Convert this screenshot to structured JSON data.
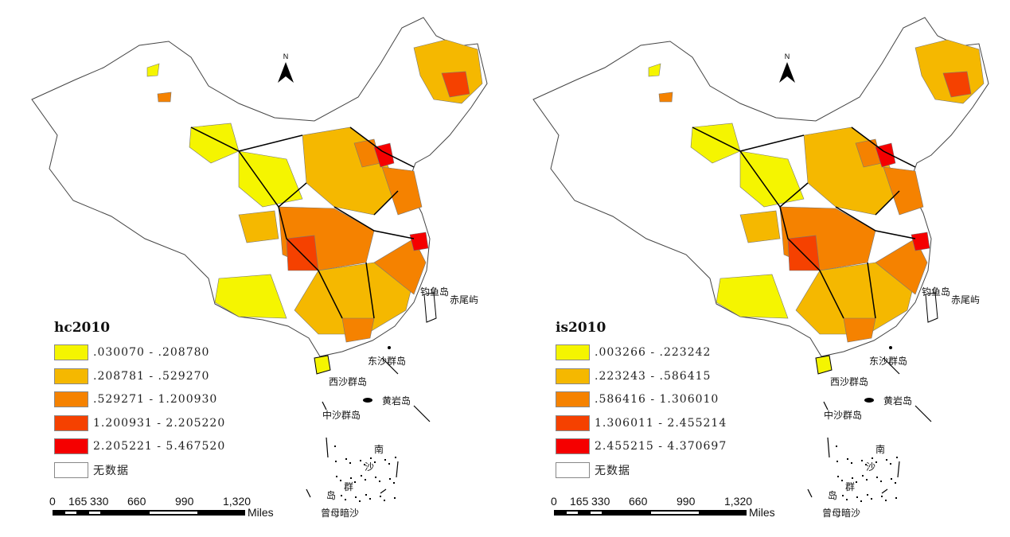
{
  "panels": [
    {
      "title": "hc2010",
      "legend": [
        {
          "label": ".030070 - .208780",
          "color": "#f5f500"
        },
        {
          "label": ".208781 - .529270",
          "color": "#f5b800"
        },
        {
          "label": ".529271 - 1.200930",
          "color": "#f58200"
        },
        {
          "label": "1.200931 - 2.205220",
          "color": "#f54100"
        },
        {
          "label": "2.205221 - 5.467520",
          "color": "#f50000"
        },
        {
          "label": "无数据",
          "color": "#ffffff"
        }
      ]
    },
    {
      "title": "is2010",
      "legend": [
        {
          "label": ".003266 - .223242",
          "color": "#f5f500"
        },
        {
          "label": ".223243 - .586415",
          "color": "#f5b800"
        },
        {
          "label": ".586416 - 1.306010",
          "color": "#f58200"
        },
        {
          "label": "1.306011 - 2.455214",
          "color": "#f54100"
        },
        {
          "label": "2.455215 - 4.370697",
          "color": "#f50000"
        },
        {
          "label": "无数据",
          "color": "#ffffff"
        }
      ]
    }
  ],
  "scale": {
    "ticks": [
      "0",
      "165",
      "330",
      "660",
      "990",
      "1,320"
    ],
    "unit": "Miles"
  },
  "north": "N",
  "islands": {
    "diaoyu": "钓鱼岛",
    "chiwei": "赤尾屿",
    "dongsha": "东沙群岛",
    "xisha": "西沙群岛",
    "huangyan": "黄岩岛",
    "zhongsha": "中沙群岛",
    "nansha": [
      "南",
      "沙",
      "群",
      "岛"
    ],
    "zengmu": "曾母暗沙"
  }
}
